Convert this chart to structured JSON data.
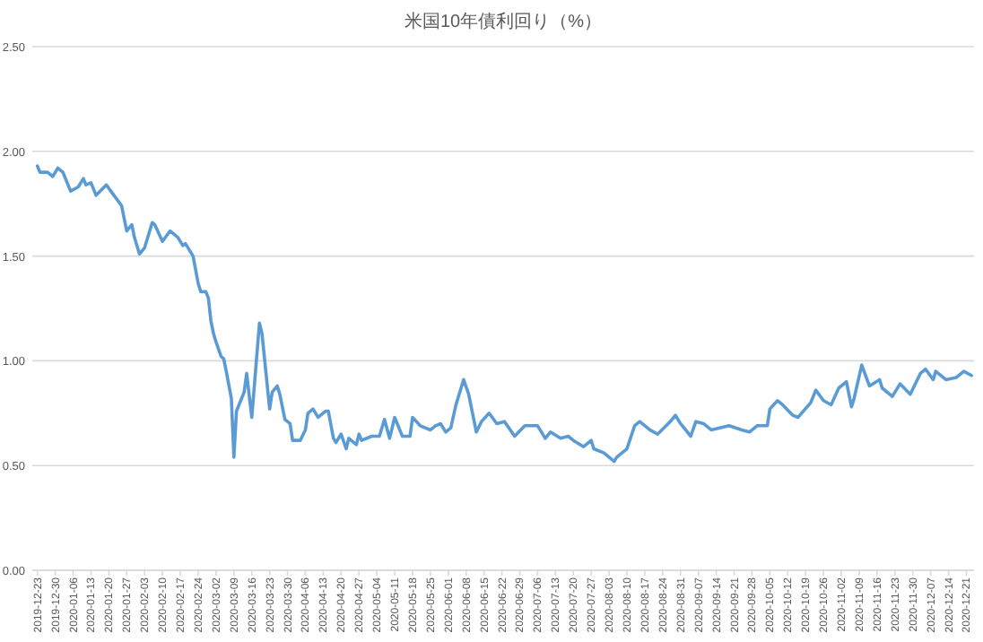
{
  "chart_data": {
    "type": "line",
    "title": "米国10年債利回り（%）",
    "x": [
      "2019-12-23",
      "2019-12-24",
      "2019-12-27",
      "2019-12-29",
      "2019-12-31",
      "2020-01-02",
      "2020-01-05",
      "2020-01-08",
      "2020-01-10",
      "2020-01-11",
      "2020-01-13",
      "2020-01-15",
      "2020-01-19",
      "2020-01-22",
      "2020-01-25",
      "2020-01-27",
      "2020-01-29",
      "2020-01-30",
      "2020-02-01",
      "2020-02-03",
      "2020-02-06",
      "2020-02-07",
      "2020-02-10",
      "2020-02-13",
      "2020-02-16",
      "2020-02-18",
      "2020-02-19",
      "2020-02-22",
      "2020-02-24",
      "2020-02-25",
      "2020-02-27",
      "2020-02-28",
      "2020-02-29",
      "2020-03-01",
      "2020-03-02",
      "2020-03-04",
      "2020-03-05",
      "2020-03-06",
      "2020-03-08",
      "2020-03-09",
      "2020-03-10",
      "2020-03-13",
      "2020-03-14",
      "2020-03-16",
      "2020-03-19",
      "2020-03-20",
      "2020-03-23",
      "2020-03-24",
      "2020-03-26",
      "2020-03-27",
      "2020-03-29",
      "2020-03-31",
      "2020-04-01",
      "2020-04-04",
      "2020-04-06",
      "2020-04-07",
      "2020-04-09",
      "2020-04-11",
      "2020-04-14",
      "2020-04-15",
      "2020-04-17",
      "2020-04-18",
      "2020-04-20",
      "2020-04-22",
      "2020-04-23",
      "2020-04-26",
      "2020-04-27",
      "2020-04-28",
      "2020-05-02",
      "2020-05-05",
      "2020-05-07",
      "2020-05-09",
      "2020-05-11",
      "2020-05-14",
      "2020-05-17",
      "2020-05-18",
      "2020-05-21",
      "2020-05-25",
      "2020-05-27",
      "2020-05-29",
      "2020-05-31",
      "2020-06-02",
      "2020-06-04",
      "2020-06-07",
      "2020-06-09",
      "2020-06-12",
      "2020-06-14",
      "2020-06-17",
      "2020-06-20",
      "2020-06-23",
      "2020-06-27",
      "2020-07-01",
      "2020-07-06",
      "2020-07-09",
      "2020-07-11",
      "2020-07-15",
      "2020-07-18",
      "2020-07-20",
      "2020-07-24",
      "2020-07-27",
      "2020-07-28",
      "2020-08-01",
      "2020-08-05",
      "2020-08-06",
      "2020-08-10",
      "2020-08-13",
      "2020-08-15",
      "2020-08-19",
      "2020-08-22",
      "2020-08-27",
      "2020-08-29",
      "2020-08-31",
      "2020-09-04",
      "2020-09-06",
      "2020-09-09",
      "2020-09-12",
      "2020-09-19",
      "2020-09-24",
      "2020-09-27",
      "2020-09-30",
      "2020-10-04",
      "2020-10-05",
      "2020-10-08",
      "2020-10-10",
      "2020-10-14",
      "2020-10-16",
      "2020-10-21",
      "2020-10-23",
      "2020-10-26",
      "2020-10-29",
      "2020-11-01",
      "2020-11-04",
      "2020-11-06",
      "2020-11-07",
      "2020-11-10",
      "2020-11-13",
      "2020-11-17",
      "2020-11-18",
      "2020-11-22",
      "2020-11-25",
      "2020-11-29",
      "2020-12-03",
      "2020-12-05",
      "2020-12-08",
      "2020-12-09",
      "2020-12-13",
      "2020-12-17",
      "2020-12-20",
      "2020-12-23"
    ],
    "series": [
      {
        "color": "#5b9bd5",
        "values": [
          1.93,
          1.9,
          1.9,
          1.88,
          1.92,
          1.9,
          1.81,
          1.83,
          1.87,
          1.84,
          1.85,
          1.79,
          1.84,
          1.79,
          1.74,
          1.62,
          1.65,
          1.59,
          1.51,
          1.54,
          1.66,
          1.65,
          1.57,
          1.62,
          1.59,
          1.55,
          1.56,
          1.5,
          1.37,
          1.33,
          1.33,
          1.3,
          1.19,
          1.13,
          1.09,
          1.02,
          1.01,
          0.95,
          0.82,
          0.54,
          0.76,
          0.85,
          0.94,
          0.73,
          1.18,
          1.13,
          0.77,
          0.85,
          0.88,
          0.84,
          0.72,
          0.7,
          0.62,
          0.62,
          0.67,
          0.75,
          0.77,
          0.73,
          0.76,
          0.76,
          0.63,
          0.61,
          0.65,
          0.58,
          0.63,
          0.6,
          0.65,
          0.62,
          0.64,
          0.64,
          0.72,
          0.63,
          0.73,
          0.64,
          0.64,
          0.73,
          0.69,
          0.67,
          0.69,
          0.7,
          0.66,
          0.68,
          0.79,
          0.91,
          0.84,
          0.66,
          0.71,
          0.75,
          0.7,
          0.71,
          0.64,
          0.69,
          0.69,
          0.63,
          0.66,
          0.63,
          0.64,
          0.62,
          0.59,
          0.62,
          0.58,
          0.56,
          0.52,
          0.54,
          0.58,
          0.69,
          0.71,
          0.67,
          0.65,
          0.71,
          0.74,
          0.7,
          0.64,
          0.71,
          0.7,
          0.67,
          0.69,
          0.67,
          0.66,
          0.69,
          0.69,
          0.77,
          0.81,
          0.79,
          0.74,
          0.73,
          0.8,
          0.86,
          0.81,
          0.79,
          0.87,
          0.9,
          0.78,
          0.82,
          0.98,
          0.88,
          0.91,
          0.87,
          0.83,
          0.89,
          0.84,
          0.94,
          0.96,
          0.91,
          0.95,
          0.91,
          0.92,
          0.95,
          0.93
        ]
      }
    ],
    "xlim": [
      "2019-12-21",
      "2020-12-24"
    ],
    "xticks": [
      "2019-12-23",
      "2019-12-30",
      "2020-01-06",
      "2020-01-13",
      "2020-01-20",
      "2020-01-27",
      "2020-02-03",
      "2020-02-10",
      "2020-02-17",
      "2020-02-24",
      "2020-03-02",
      "2020-03-09",
      "2020-03-16",
      "2020-03-23",
      "2020-03-30",
      "2020-04-06",
      "2020-04-13",
      "2020-04-20",
      "2020-04-27",
      "2020-05-04",
      "2020-05-11",
      "2020-05-18",
      "2020-05-25",
      "2020-06-01",
      "2020-06-08",
      "2020-06-15",
      "2020-06-22",
      "2020-06-29",
      "2020-07-06",
      "2020-07-13",
      "2020-07-20",
      "2020-07-27",
      "2020-08-03",
      "2020-08-10",
      "2020-08-17",
      "2020-08-24",
      "2020-08-31",
      "2020-09-07",
      "2020-09-14",
      "2020-09-21",
      "2020-09-28",
      "2020-10-05",
      "2020-10-12",
      "2020-10-19",
      "2020-10-26",
      "2020-11-02",
      "2020-11-09",
      "2020-11-16",
      "2020-11-23",
      "2020-11-30",
      "2020-12-07",
      "2020-12-14",
      "2020-12-21"
    ],
    "ylim": [
      0,
      2.5
    ],
    "yticks": [
      {
        "value": 0,
        "label": "0.00"
      },
      {
        "value": 0.5,
        "label": "0.50"
      },
      {
        "value": 1,
        "label": "1.00"
      },
      {
        "value": 1.5,
        "label": "1.50"
      },
      {
        "value": 2,
        "label": "2.00"
      },
      {
        "value": 2.5,
        "label": "2.50"
      }
    ],
    "grid": "y",
    "marker": "none",
    "line_style": "solid"
  }
}
